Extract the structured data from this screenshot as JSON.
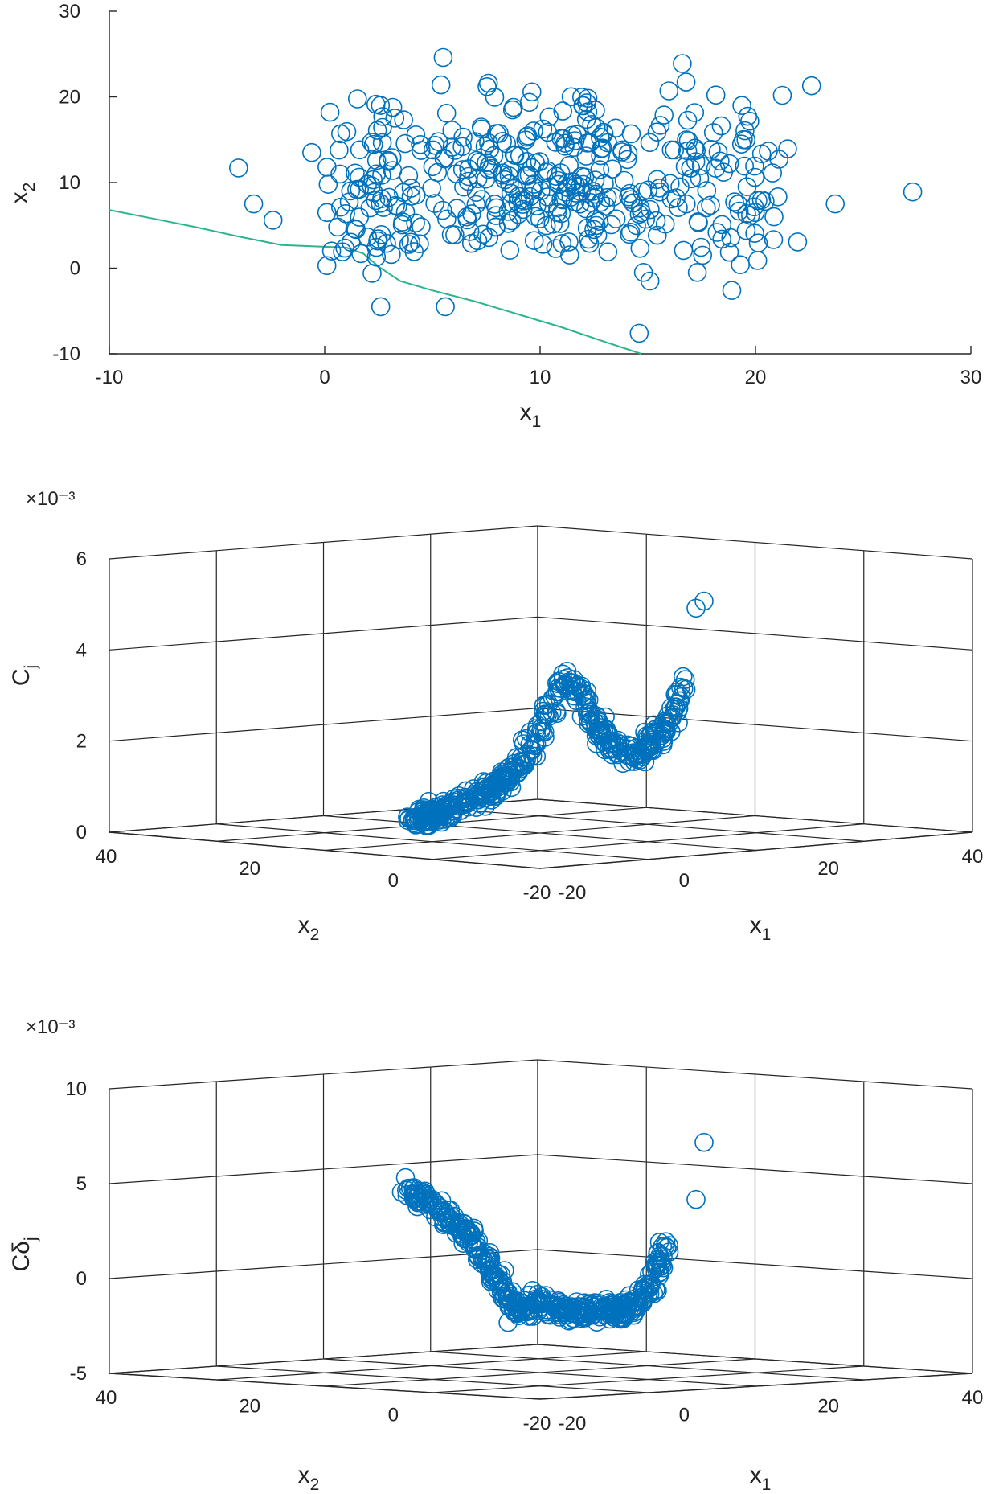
{
  "colors": {
    "marker": "#0072BD",
    "boundary": "#2AB48F",
    "axis": "#262626"
  },
  "chart_data": [
    {
      "type": "scatter",
      "name": "top-scatter",
      "xlabel": "x",
      "xlabel_sub": "1",
      "ylabel": "x",
      "ylabel_sub": "2",
      "xlim": [
        -10,
        30
      ],
      "ylim": [
        -10,
        30
      ],
      "xticks": [
        -10,
        0,
        10,
        20,
        30
      ],
      "yticks": [
        -10,
        0,
        10,
        20,
        30
      ],
      "series": [
        {
          "name": "samples",
          "marker": "circle-open",
          "generated_cloud": {
            "count": 400,
            "center": [
              10,
              10
            ],
            "spread": [
              6,
              5
            ]
          },
          "points": [
            [
              -4,
              11.7
            ],
            [
              -3.3,
              7.5
            ],
            [
              -2.4,
              5.6
            ],
            [
              -0.6,
              13.5
            ],
            [
              0.1,
              6.5
            ],
            [
              0.1,
              0.3
            ],
            [
              0.6,
              4.8
            ],
            [
              1.4,
              4.6
            ],
            [
              2.2,
              -0.6
            ],
            [
              2.4,
              1.3
            ],
            [
              2.6,
              -4.5
            ],
            [
              5.4,
              21.4
            ],
            [
              5.5,
              24.6
            ],
            [
              5.6,
              -4.5
            ],
            [
              7.6,
              21.6
            ],
            [
              14.6,
              -7.6
            ],
            [
              14.8,
              -0.5
            ],
            [
              15.1,
              -1.5
            ],
            [
              16.6,
              23.9
            ],
            [
              17.3,
              -0.5
            ],
            [
              18.9,
              -2.6
            ],
            [
              19.3,
              0.4
            ],
            [
              20.1,
              0.9
            ],
            [
              22.6,
              21.3
            ],
            [
              23.7,
              7.5
            ],
            [
              27.3,
              8.9
            ]
          ]
        }
      ],
      "boundary_curve": {
        "x": [
          -10,
          -8,
          -6,
          -4,
          -2,
          0,
          1,
          1.8,
          2.5,
          3.5,
          5,
          7,
          9,
          11,
          13,
          14.7
        ],
        "y": [
          6.8,
          5.8,
          4.8,
          3.7,
          2.7,
          2.5,
          2.4,
          1.7,
          0.2,
          -1.5,
          -2.6,
          -3.9,
          -5.4,
          -6.9,
          -8.6,
          -10
        ]
      }
    },
    {
      "type": "scatter3d",
      "name": "middle-3d",
      "exponent_label": "×10⁻³",
      "xlabel": "x",
      "xlabel_sub": "1",
      "ylabel": "x",
      "ylabel_sub": "2",
      "zlabel": "C",
      "zlabel_sub": "j",
      "xlim": [
        -20,
        40
      ],
      "ylim": [
        -20,
        40
      ],
      "zlim": [
        0,
        6
      ],
      "xticks": [
        -20,
        0,
        20,
        40
      ],
      "yticks": [
        40,
        20,
        0,
        -20
      ],
      "zticks": [
        0,
        2,
        4,
        6
      ],
      "curve": {
        "u": [
          0.0,
          0.1,
          0.2,
          0.3,
          0.38,
          0.45,
          0.5,
          0.53,
          0.56,
          0.6,
          0.65,
          0.72,
          0.78,
          0.83,
          0.88,
          0.92,
          0.96,
          1.0
        ],
        "z": [
          0.2,
          0.3,
          0.55,
          0.9,
          1.35,
          2.0,
          2.7,
          3.2,
          3.4,
          3.05,
          2.3,
          1.8,
          1.65,
          1.85,
          2.2,
          2.7,
          3.6,
          4.6
        ]
      }
    },
    {
      "type": "scatter3d",
      "name": "bottom-3d",
      "exponent_label": "×10⁻³",
      "xlabel": "x",
      "xlabel_sub": "1",
      "ylabel": "x",
      "ylabel_sub": "2",
      "zlabel": "Cδ",
      "zlabel_sub": "j",
      "xlim": [
        -20,
        40
      ],
      "ylim": [
        -20,
        40
      ],
      "zlim": [
        -5,
        10
      ],
      "xticks": [
        -20,
        0,
        20,
        40
      ],
      "yticks": [
        40,
        20,
        0,
        -20
      ],
      "zticks": [
        -5,
        0,
        5,
        10
      ],
      "curve": {
        "u": [
          0.0,
          0.08,
          0.16,
          0.24,
          0.3,
          0.36,
          0.4,
          0.45,
          0.5,
          0.55,
          0.62,
          0.7,
          0.78,
          0.84,
          0.88,
          0.92,
          0.95,
          0.98,
          1.0
        ],
        "z": [
          4.8,
          4.0,
          3.2,
          2.2,
          1.0,
          -0.5,
          -1.4,
          -1.8,
          -1.0,
          -1.6,
          -1.8,
          -1.7,
          -1.8,
          -1.6,
          -1.0,
          0.3,
          2.0,
          4.2,
          7.0
        ]
      }
    }
  ]
}
